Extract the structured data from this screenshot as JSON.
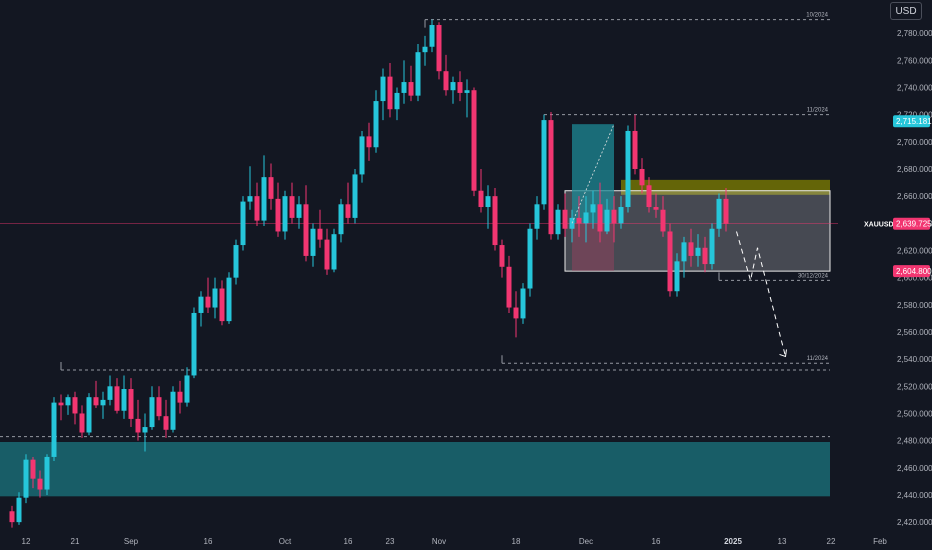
{
  "currency_button": "USD",
  "colors": {
    "background": "#131722",
    "up": "#26c6da",
    "down": "#f23671",
    "axis_text": "#b2b5be",
    "dashed": "#9598a1",
    "zone_teal": "#1a6a73",
    "order_block": "#808000",
    "range_box": "#ffffff"
  },
  "chart_data": {
    "type": "candlestick",
    "title": "",
    "symbol_label": "XAUUSD",
    "ylim": [
      2412,
      2800
    ],
    "y_ticks": [
      2420,
      2440,
      2460,
      2480,
      2500,
      2520,
      2540,
      2560,
      2580,
      2600,
      2620,
      2640,
      2660,
      2680,
      2700,
      2720,
      2740,
      2760,
      2780
    ],
    "y_tick_labels": [
      "2,420.000",
      "2,440.000",
      "2,460.000",
      "2,480.000",
      "2,500.000",
      "2,520.000",
      "2,540.000",
      "2,560.000",
      "2,580.000",
      "2,600.000",
      "2,620.000",
      "2,640.000",
      "2,660.000",
      "2,680.000",
      "2,700.000",
      "2,720.000",
      "2,740.000",
      "2,760.000",
      "2,780.000"
    ],
    "x_labels": [
      {
        "text": "12",
        "index": 2
      },
      {
        "text": "21",
        "index": 9
      },
      {
        "text": "Sep",
        "index": 17
      },
      {
        "text": "16",
        "index": 28
      },
      {
        "text": "Oct",
        "index": 39
      },
      {
        "text": "16",
        "index": 48
      },
      {
        "text": "23",
        "index": 54
      },
      {
        "text": "Nov",
        "index": 61
      },
      {
        "text": "18",
        "index": 72
      },
      {
        "text": "Dec",
        "index": 82
      },
      {
        "text": "16",
        "index": 92
      },
      {
        "text": "2025",
        "index": 103,
        "bold": true
      },
      {
        "text": "13",
        "index": 110
      },
      {
        "text": "22",
        "index": 117
      },
      {
        "text": "Feb",
        "index": 124
      }
    ],
    "candles": [
      [
        2428,
        2432,
        2416,
        2420
      ],
      [
        2420,
        2442,
        2418,
        2438
      ],
      [
        2438,
        2470,
        2434,
        2466
      ],
      [
        2466,
        2468,
        2445,
        2452
      ],
      [
        2452,
        2458,
        2438,
        2444
      ],
      [
        2444,
        2470,
        2440,
        2468
      ],
      [
        2468,
        2512,
        2465,
        2508
      ],
      [
        2508,
        2514,
        2495,
        2506
      ],
      [
        2506,
        2514,
        2499,
        2512
      ],
      [
        2512,
        2516,
        2492,
        2500
      ],
      [
        2500,
        2506,
        2482,
        2486
      ],
      [
        2486,
        2515,
        2484,
        2512
      ],
      [
        2512,
        2524,
        2504,
        2506
      ],
      [
        2506,
        2516,
        2496,
        2510
      ],
      [
        2510,
        2528,
        2506,
        2520
      ],
      [
        2520,
        2526,
        2500,
        2502
      ],
      [
        2502,
        2528,
        2496,
        2518
      ],
      [
        2518,
        2526,
        2490,
        2496
      ],
      [
        2496,
        2510,
        2480,
        2486
      ],
      [
        2486,
        2500,
        2472,
        2490
      ],
      [
        2490,
        2520,
        2488,
        2512
      ],
      [
        2512,
        2520,
        2495,
        2498
      ],
      [
        2498,
        2510,
        2482,
        2488
      ],
      [
        2488,
        2520,
        2486,
        2516
      ],
      [
        2516,
        2524,
        2500,
        2508
      ],
      [
        2508,
        2534,
        2505,
        2528
      ],
      [
        2528,
        2578,
        2526,
        2574
      ],
      [
        2574,
        2590,
        2564,
        2586
      ],
      [
        2586,
        2600,
        2574,
        2578
      ],
      [
        2578,
        2600,
        2570,
        2592
      ],
      [
        2592,
        2598,
        2565,
        2568
      ],
      [
        2568,
        2604,
        2566,
        2600
      ],
      [
        2600,
        2628,
        2595,
        2624
      ],
      [
        2624,
        2660,
        2620,
        2656
      ],
      [
        2656,
        2682,
        2650,
        2660
      ],
      [
        2660,
        2670,
        2638,
        2642
      ],
      [
        2642,
        2690,
        2638,
        2674
      ],
      [
        2674,
        2684,
        2650,
        2658
      ],
      [
        2658,
        2670,
        2630,
        2634
      ],
      [
        2634,
        2664,
        2628,
        2660
      ],
      [
        2660,
        2670,
        2640,
        2644
      ],
      [
        2644,
        2660,
        2636,
        2654
      ],
      [
        2654,
        2668,
        2612,
        2616
      ],
      [
        2616,
        2640,
        2608,
        2636
      ],
      [
        2636,
        2650,
        2622,
        2628
      ],
      [
        2628,
        2636,
        2602,
        2606
      ],
      [
        2606,
        2636,
        2604,
        2632
      ],
      [
        2632,
        2658,
        2626,
        2654
      ],
      [
        2654,
        2670,
        2640,
        2644
      ],
      [
        2644,
        2680,
        2640,
        2676
      ],
      [
        2676,
        2708,
        2670,
        2704
      ],
      [
        2704,
        2714,
        2686,
        2696
      ],
      [
        2696,
        2738,
        2692,
        2730
      ],
      [
        2730,
        2754,
        2716,
        2748
      ],
      [
        2748,
        2758,
        2718,
        2724
      ],
      [
        2724,
        2740,
        2716,
        2736
      ],
      [
        2736,
        2760,
        2728,
        2744
      ],
      [
        2744,
        2756,
        2730,
        2734
      ],
      [
        2734,
        2772,
        2730,
        2766
      ],
      [
        2766,
        2778,
        2756,
        2770
      ],
      [
        2770,
        2790,
        2766,
        2786
      ],
      [
        2786,
        2788,
        2746,
        2752
      ],
      [
        2752,
        2764,
        2734,
        2738
      ],
      [
        2738,
        2748,
        2728,
        2744
      ],
      [
        2744,
        2752,
        2730,
        2736
      ],
      [
        2736,
        2746,
        2718,
        2738
      ],
      [
        2738,
        2740,
        2660,
        2664
      ],
      [
        2664,
        2680,
        2648,
        2652
      ],
      [
        2652,
        2668,
        2636,
        2660
      ],
      [
        2660,
        2666,
        2620,
        2624
      ],
      [
        2624,
        2628,
        2600,
        2608
      ],
      [
        2608,
        2616,
        2574,
        2578
      ],
      [
        2578,
        2590,
        2556,
        2570
      ],
      [
        2570,
        2596,
        2566,
        2592
      ],
      [
        2592,
        2640,
        2586,
        2636
      ],
      [
        2636,
        2660,
        2628,
        2654
      ],
      [
        2654,
        2720,
        2650,
        2716
      ],
      [
        2716,
        2722,
        2628,
        2632
      ],
      [
        2632,
        2654,
        2628,
        2650
      ],
      [
        2650,
        2662,
        2630,
        2636
      ],
      [
        2636,
        2650,
        2626,
        2644
      ],
      [
        2644,
        2660,
        2630,
        2640
      ],
      [
        2640,
        2660,
        2626,
        2648
      ],
      [
        2648,
        2664,
        2636,
        2654
      ],
      [
        2654,
        2670,
        2626,
        2634
      ],
      [
        2634,
        2658,
        2632,
        2650
      ],
      [
        2650,
        2660,
        2626,
        2640
      ],
      [
        2640,
        2660,
        2636,
        2652
      ],
      [
        2652,
        2712,
        2648,
        2708
      ],
      [
        2708,
        2720,
        2676,
        2680
      ],
      [
        2680,
        2688,
        2662,
        2668
      ],
      [
        2668,
        2674,
        2648,
        2652
      ],
      [
        2652,
        2662,
        2644,
        2650
      ],
      [
        2650,
        2660,
        2630,
        2634
      ],
      [
        2634,
        2640,
        2586,
        2590
      ],
      [
        2590,
        2618,
        2586,
        2612
      ],
      [
        2612,
        2630,
        2600,
        2626
      ],
      [
        2626,
        2636,
        2608,
        2616
      ],
      [
        2616,
        2632,
        2608,
        2622
      ],
      [
        2622,
        2630,
        2604,
        2610
      ],
      [
        2610,
        2640,
        2606,
        2636
      ],
      [
        2636,
        2662,
        2630,
        2658
      ],
      [
        2658,
        2666,
        2634,
        2639.725
      ]
    ],
    "zones": [
      {
        "kind": "support-zone",
        "from_index": -2,
        "to_index": 127,
        "top": 2479,
        "bottom": 2439
      },
      {
        "kind": "order-block",
        "from_index": 87,
        "to_index": 127,
        "top": 2672,
        "bottom": 2661
      },
      {
        "kind": "range-box",
        "from_index": 79,
        "to_index": 127,
        "top": 2664,
        "bottom": 2604.8
      },
      {
        "kind": "target-box",
        "from_index": 80,
        "to_index": 86,
        "top": 2713,
        "bottom": 2640
      },
      {
        "kind": "stop-box",
        "from_index": 80,
        "to_index": 86,
        "top": 2640,
        "bottom": 2605
      }
    ],
    "levels": [
      {
        "value": 2790,
        "from_index": 59,
        "to_index": 127,
        "label": "10/2024"
      },
      {
        "value": 2720,
        "from_index": 76,
        "to_index": 127,
        "label": "11/2024"
      },
      {
        "value": 2537,
        "from_index": 70,
        "to_index": 127,
        "label": "11/2024"
      },
      {
        "value": 2532,
        "from_index": 7,
        "to_index": 127,
        "label": ""
      },
      {
        "value": 2598,
        "from_index": 101,
        "to_index": 127,
        "label": "30/12/2024"
      },
      {
        "value": 2483,
        "from_index": -2,
        "to_index": 127,
        "label": ""
      }
    ],
    "projection": [
      {
        "index": 103.5,
        "value": 2634
      },
      {
        "index": 105.5,
        "value": 2598
      },
      {
        "index": 106.5,
        "value": 2622
      },
      {
        "index": 110.5,
        "value": 2542
      }
    ],
    "price_tags": [
      {
        "value": 2715.181,
        "text": "2,715.181",
        "color": "#26c6da"
      },
      {
        "value": 2639.725,
        "text": "2,639.725",
        "color": "#f23671"
      },
      {
        "value": 2604.8,
        "text": "2,604.800",
        "color": "#f23671"
      }
    ]
  }
}
